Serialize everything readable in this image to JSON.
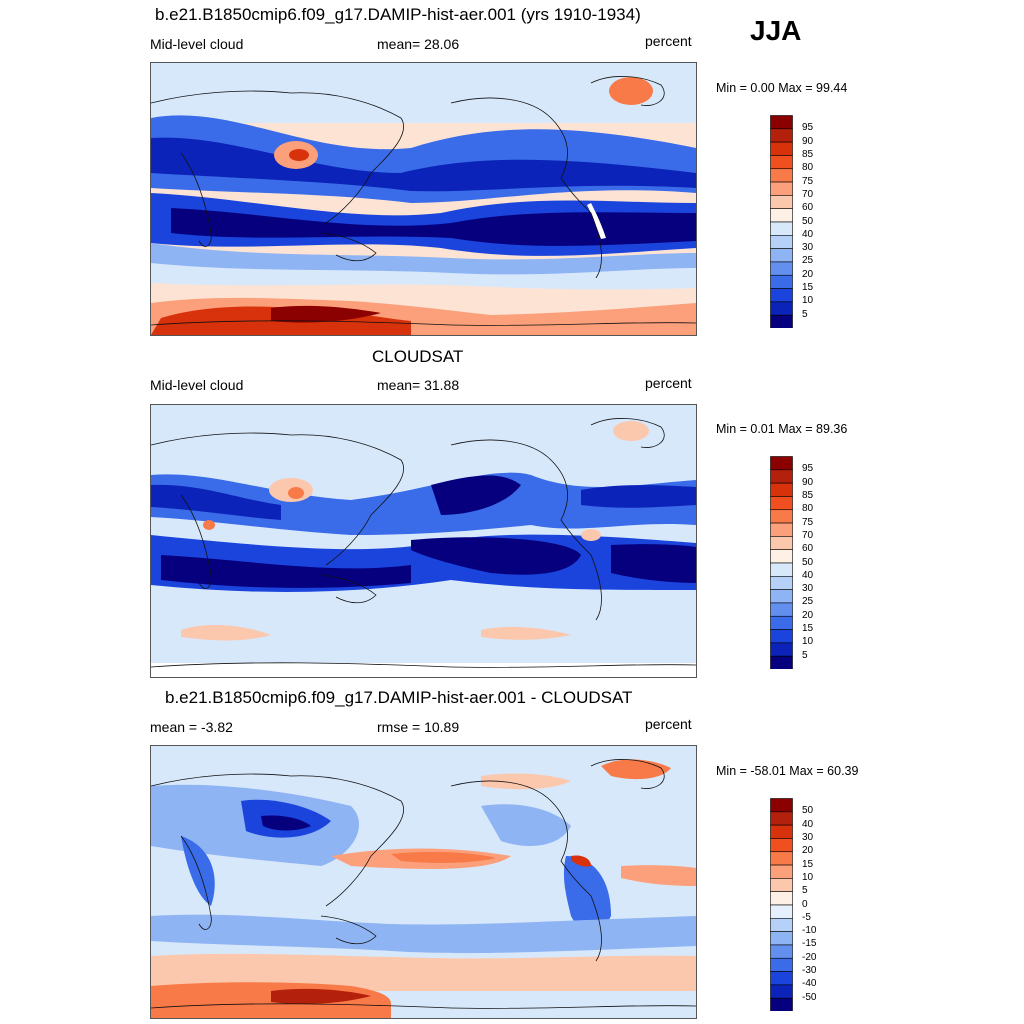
{
  "season": "JJA",
  "panels": [
    {
      "title": "b.e21.B1850cmip6.f09_g17.DAMIP-hist-aer.001 (yrs 1910-1934)",
      "left_label": "Mid-level cloud",
      "center_label": "mean=  28.06",
      "right_label": "percent",
      "minmax": "Min =   0.00 Max =  99.44"
    },
    {
      "title": "CLOUDSAT",
      "left_label": "Mid-level cloud",
      "center_label": "mean=  31.88",
      "right_label": "percent",
      "minmax": "Min =   0.01 Max =  89.36"
    },
    {
      "title": "b.e21.B1850cmip6.f09_g17.DAMIP-hist-aer.001 - CLOUDSAT",
      "left_label": "mean =  -3.82",
      "center_label": "rmse =  10.89",
      "right_label": "percent",
      "minmax": "Min = -58.01 Max =  60.39"
    }
  ],
  "chart_data": [
    {
      "type": "heatmap",
      "title": "b.e21.B1850cmip6.f09_g17.DAMIP-hist-aer.001 (yrs 1910-1934)",
      "variable": "Mid-level cloud",
      "units": "percent",
      "mean": 28.06,
      "min": 0.0,
      "max": 99.44,
      "colorbar_levels": [
        "95",
        "90",
        "85",
        "80",
        "75",
        "70",
        "60",
        "50",
        "40",
        "30",
        "25",
        "20",
        "15",
        "10",
        "5"
      ],
      "colorbar_colors": [
        "#8b0000",
        "#b3200b",
        "#d8320c",
        "#f0501f",
        "#f87a48",
        "#fca07c",
        "#fcc8ad",
        "#fdf0e4",
        "#d7e8fb",
        "#b6d1f8",
        "#8fb4f4",
        "#6390ef",
        "#3a6be8",
        "#1a44dc",
        "#0b23b8",
        "#06007f"
      ]
    },
    {
      "type": "heatmap",
      "title": "CLOUDSAT",
      "variable": "Mid-level cloud",
      "units": "percent",
      "mean": 31.88,
      "min": 0.01,
      "max": 89.36,
      "colorbar_levels": [
        "95",
        "90",
        "85",
        "80",
        "75",
        "70",
        "60",
        "50",
        "40",
        "30",
        "25",
        "20",
        "15",
        "10",
        "5"
      ],
      "colorbar_colors": [
        "#8b0000",
        "#b3200b",
        "#d8320c",
        "#f0501f",
        "#f87a48",
        "#fca07c",
        "#fcc8ad",
        "#fdf0e4",
        "#d7e8fb",
        "#b6d1f8",
        "#8fb4f4",
        "#6390ef",
        "#3a6be8",
        "#1a44dc",
        "#0b23b8",
        "#06007f"
      ]
    },
    {
      "type": "heatmap",
      "title": "b.e21.B1850cmip6.f09_g17.DAMIP-hist-aer.001 - CLOUDSAT",
      "units": "percent",
      "mean": -3.82,
      "rmse": 10.89,
      "min": -58.01,
      "max": 60.39,
      "colorbar_levels": [
        "50",
        "40",
        "30",
        "20",
        "15",
        "10",
        "5",
        "0",
        "-5",
        "-10",
        "-15",
        "-20",
        "-30",
        "-40",
        "-50"
      ],
      "colorbar_colors": [
        "#8b0000",
        "#b3200b",
        "#d8320c",
        "#f0501f",
        "#f87a48",
        "#fca07c",
        "#fcc8ad",
        "#fdf0e4",
        "#e6f0fc",
        "#b6d1f8",
        "#8fb4f4",
        "#6390ef",
        "#3a6be8",
        "#1a44dc",
        "#0b23b8",
        "#06007f"
      ]
    }
  ]
}
